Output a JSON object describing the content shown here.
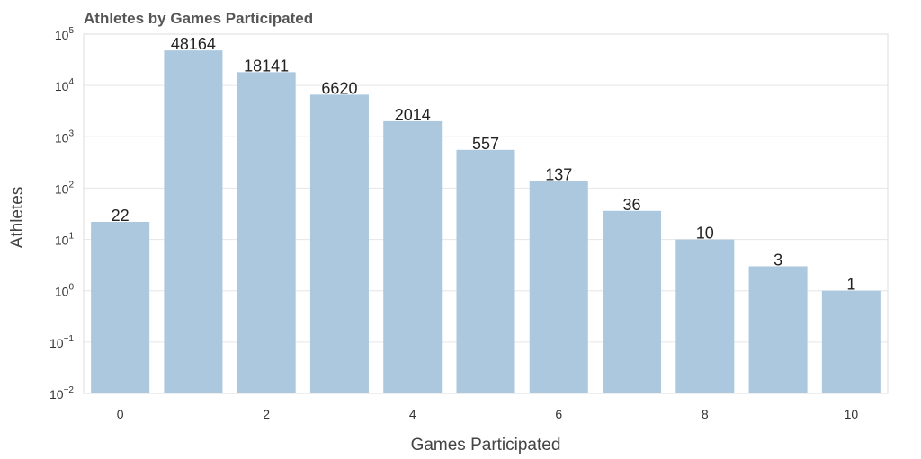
{
  "chart_data": {
    "type": "bar",
    "title": "Athletes by Games Participated",
    "xlabel": "Games Participated",
    "ylabel": "Athletes",
    "y_scale": "log",
    "ylim": [
      0.01,
      100000
    ],
    "categories": [
      0,
      1,
      2,
      3,
      4,
      5,
      6,
      7,
      8,
      9,
      10
    ],
    "values": [
      22,
      48164,
      18141,
      6620,
      2014,
      557,
      137,
      36,
      10,
      3,
      1
    ],
    "data_labels": [
      "22",
      "48164",
      "18141",
      "6620",
      "2014",
      "557",
      "137",
      "36",
      "10",
      "3",
      "1"
    ],
    "x_ticks": [
      "0",
      "2",
      "4",
      "6",
      "8",
      "10"
    ],
    "y_ticks": [
      {
        "base": "10",
        "exp": "5"
      },
      {
        "base": "10",
        "exp": "4"
      },
      {
        "base": "10",
        "exp": "3"
      },
      {
        "base": "10",
        "exp": "2"
      },
      {
        "base": "10",
        "exp": "1"
      },
      {
        "base": "10",
        "exp": "0"
      },
      {
        "base": "10",
        "exp": "−1"
      },
      {
        "base": "10",
        "exp": "−2"
      }
    ],
    "grid": true,
    "colors": {
      "bar": "#abc8de",
      "grid": "#e6e6e6",
      "frame": "#dddddd"
    }
  }
}
